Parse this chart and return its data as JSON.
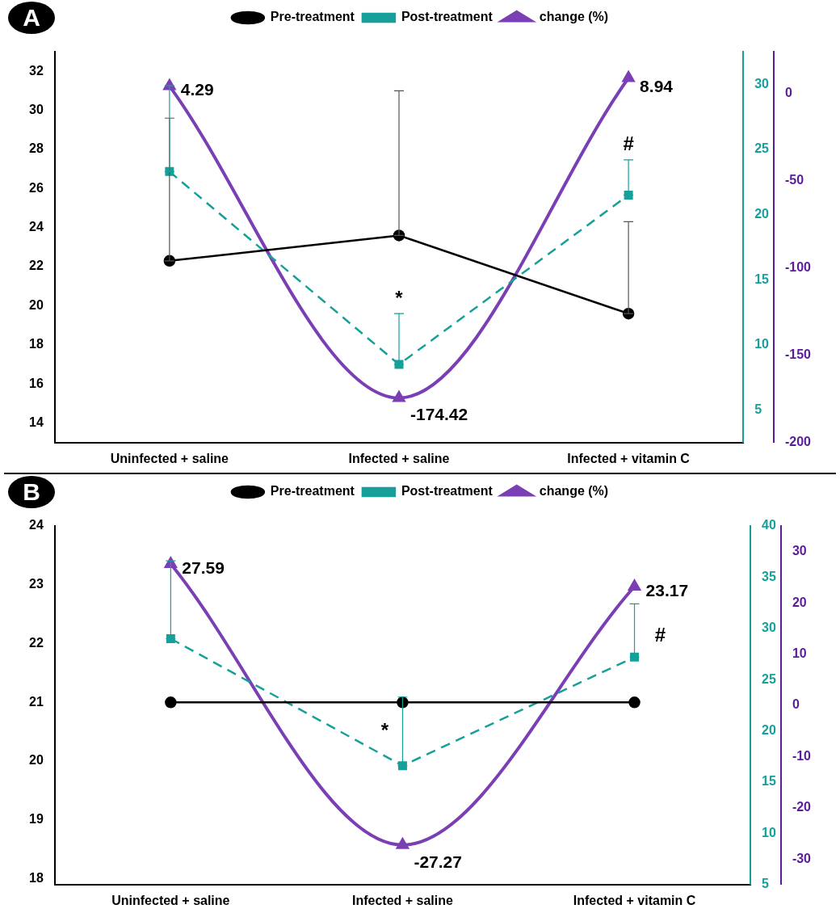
{
  "chart_data": [
    {
      "type": "line",
      "title": "A",
      "categories": [
        "Uninfected + saline",
        "Infected + saline",
        "Infected + vitamin C"
      ],
      "ylim": [
        13,
        33
      ],
      "yticks": [
        14,
        16,
        18,
        20,
        22,
        24,
        26,
        28,
        30,
        32
      ],
      "y2lim": [
        2.5,
        32.5
      ],
      "y2ticks": [
        5,
        10,
        15,
        20,
        25,
        30
      ],
      "y3lim": [
        -200,
        24
      ],
      "y3ticks": [
        -200,
        -150,
        -100,
        -50,
        0
      ],
      "legend": "top",
      "grid": false,
      "series": [
        {
          "name": "Pre-treatment",
          "color": "#000000",
          "marker": "circle",
          "line_style": "solid",
          "values": [
            22.3,
            23.6,
            19.6
          ],
          "errors": [
            [
              22.3,
              29.6
            ],
            [
              23.6,
              31.0
            ],
            [
              19.6,
              24.3
            ]
          ]
        },
        {
          "name": "Post-treatment",
          "color": "#17a09a",
          "marker": "square",
          "line_style": "dashed",
          "axis": "y2",
          "values": [
            23.3,
            8.5,
            21.5
          ],
          "errors": [
            [
              23.3,
              29.9
            ],
            [
              8.5,
              12.4
            ],
            [
              21.5,
              24.2
            ]
          ]
        },
        {
          "name": "change (%)",
          "color": "#7b3fb5",
          "marker": "triangle",
          "line_style": "solid",
          "axis": "y3",
          "values": [
            4.29,
            -174.42,
            8.94
          ],
          "data_labels": true
        }
      ],
      "annotations": [
        "*",
        "#"
      ]
    },
    {
      "type": "line",
      "title": "B",
      "categories": [
        "Uninfected + saline",
        "Infected + saline",
        "Infected + vitamin C"
      ],
      "ylim": [
        17.9,
        24
      ],
      "yticks": [
        18,
        19,
        20,
        21,
        22,
        23,
        24
      ],
      "y2lim": [
        5,
        40
      ],
      "y2ticks": [
        5,
        10,
        15,
        20,
        25,
        30,
        35,
        40
      ],
      "y3lim": [
        -35,
        35
      ],
      "y3ticks": [
        -30,
        -20,
        -10,
        0,
        10,
        20,
        30
      ],
      "legend": "top",
      "grid": false,
      "series": [
        {
          "name": "Pre-treatment",
          "color": "#000000",
          "marker": "circle",
          "line_style": "solid",
          "values": [
            21,
            21,
            21
          ]
        },
        {
          "name": "Post-treatment",
          "color": "#17a09a",
          "marker": "square",
          "line_style": "dashed",
          "axis": "y2",
          "values": [
            29.0,
            16.6,
            27.2
          ],
          "errors": [
            [
              29.0,
              36.6
            ],
            [
              16.6,
              23.3
            ],
            [
              27.2,
              32.4
            ]
          ]
        },
        {
          "name": "change (%)",
          "color": "#7b3fb5",
          "marker": "triangle",
          "line_style": "solid",
          "axis": "y3",
          "values": [
            27.59,
            -27.27,
            23.17
          ],
          "data_labels": true
        }
      ],
      "annotations": [
        "*",
        "#"
      ]
    }
  ]
}
